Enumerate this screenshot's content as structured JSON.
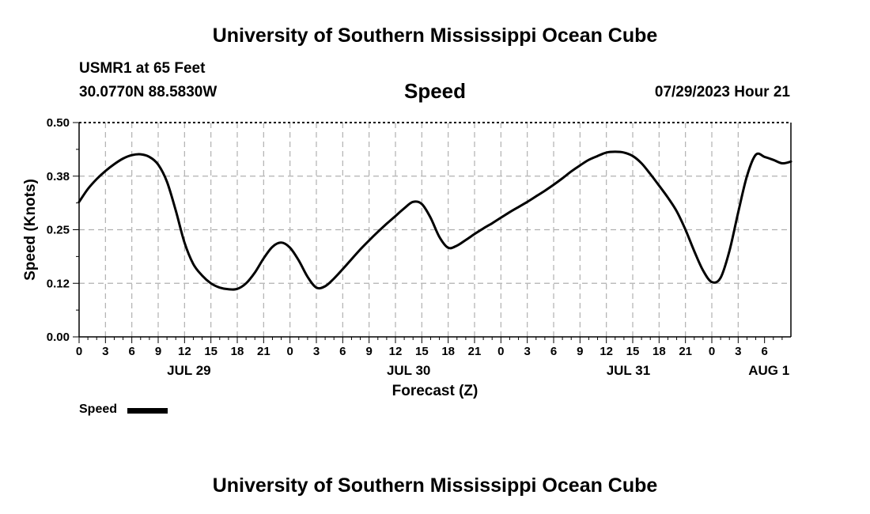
{
  "header": {
    "main_title": "University of Southern Mississippi Ocean Cube",
    "station": "USMR1 at 65 Feet",
    "coords": "30.0770N  88.5830W",
    "chart_title": "Speed",
    "timestamp": "07/29/2023 Hour 21"
  },
  "footer": {
    "title": "University of Southern Mississippi Ocean Cube"
  },
  "legend": {
    "label": "Speed"
  },
  "chart_data": {
    "type": "line",
    "title": "Speed",
    "xlabel": "Forecast (Z)",
    "ylabel": "Speed (Knots)",
    "ylim": [
      0,
      0.5
    ],
    "xlim": [
      0,
      81
    ],
    "y_ticks": [
      "0.00",
      "0.12",
      "0.25",
      "0.38",
      "0.50"
    ],
    "x_tick_labels": [
      "0",
      "3",
      "6",
      "9",
      "12",
      "15",
      "18",
      "21",
      "0",
      "3",
      "6",
      "9",
      "12",
      "15",
      "18",
      "21",
      "0",
      "3",
      "6",
      "9",
      "12",
      "15",
      "18",
      "21",
      "0",
      "3",
      "6"
    ],
    "date_labels": [
      {
        "label": "JUL 29",
        "at": 12.5
      },
      {
        "label": "JUL 30",
        "at": 37.5
      },
      {
        "label": "JUL 31",
        "at": 62.5
      },
      {
        "label": "AUG 1",
        "at": 78.5
      }
    ],
    "grid": true,
    "series": [
      {
        "name": "Speed",
        "color": "#000000",
        "x": [
          0,
          1,
          2,
          3,
          4,
          5,
          6,
          7,
          8,
          9,
          10,
          11,
          12,
          13,
          14,
          15,
          16,
          17,
          18,
          19,
          20,
          21,
          22,
          23,
          24,
          25,
          26,
          27,
          28,
          29,
          30,
          31,
          32,
          33,
          34,
          35,
          36,
          37,
          38,
          39,
          40,
          41,
          42,
          43,
          44,
          45,
          46,
          47,
          48,
          49,
          50,
          51,
          52,
          53,
          54,
          55,
          56,
          57,
          58,
          59,
          60,
          61,
          62,
          63,
          64,
          65,
          66,
          67,
          68,
          69,
          70,
          71,
          72,
          73,
          74,
          75,
          76,
          77,
          78,
          79,
          80,
          81
        ],
        "values": [
          0.315,
          0.345,
          0.368,
          0.387,
          0.403,
          0.416,
          0.424,
          0.426,
          0.42,
          0.402,
          0.362,
          0.295,
          0.22,
          0.17,
          0.143,
          0.125,
          0.115,
          0.111,
          0.112,
          0.125,
          0.15,
          0.183,
          0.21,
          0.22,
          0.208,
          0.178,
          0.14,
          0.115,
          0.118,
          0.136,
          0.158,
          0.181,
          0.204,
          0.225,
          0.245,
          0.264,
          0.282,
          0.3,
          0.315,
          0.31,
          0.278,
          0.233,
          0.208,
          0.213,
          0.226,
          0.24,
          0.253,
          0.265,
          0.278,
          0.291,
          0.303,
          0.315,
          0.328,
          0.341,
          0.355,
          0.37,
          0.386,
          0.4,
          0.413,
          0.422,
          0.43,
          0.432,
          0.43,
          0.422,
          0.405,
          0.38,
          0.353,
          0.325,
          0.293,
          0.25,
          0.2,
          0.155,
          0.128,
          0.138,
          0.2,
          0.29,
          0.375,
          0.425,
          0.42,
          0.413,
          0.405,
          0.409
        ]
      }
    ]
  }
}
